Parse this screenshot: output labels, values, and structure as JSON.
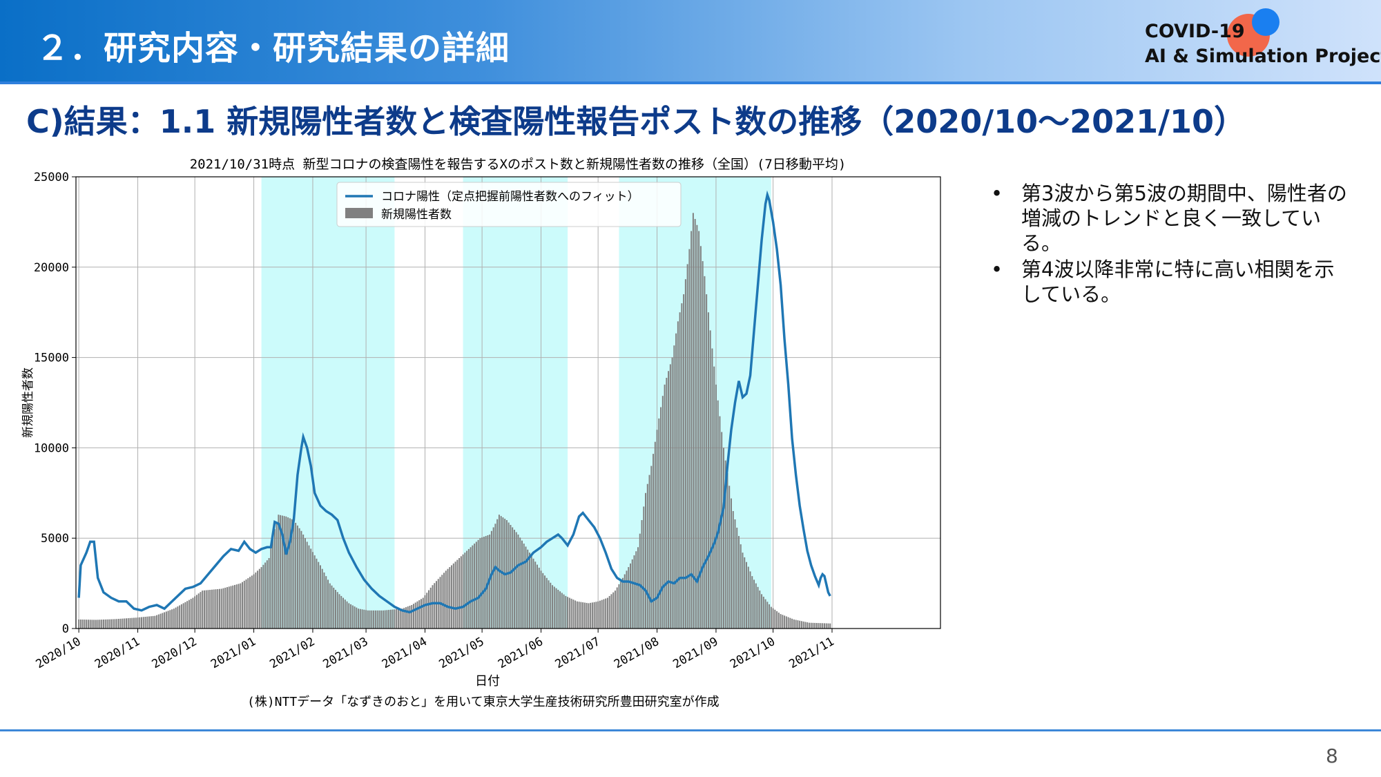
{
  "header": {
    "title": "２．研究内容・研究結果の詳細"
  },
  "logo": {
    "line1": "COVID-19",
    "line2": "AI & Simulation Project"
  },
  "slide_title": "C)結果：1.1 新規陽性者数と検査陽性報告ポスト数の推移（2020/10〜2021/10）",
  "bullets": [
    {
      "symbol": "•",
      "text": "第3波から第5波の期間中、陽性者の増減のトレンドと良く一致している。"
    },
    {
      "symbol": "•",
      "text": "第4波以降非常に特に高い相関を示している。"
    }
  ],
  "page_number": "8",
  "colors": {
    "line": "#1f77b4",
    "bar": "#808080",
    "shade": "#ccfbfb",
    "title_blue": "#0d3b8a"
  },
  "chart_data": {
    "type": "bar",
    "title": "2021/10/31時点 新型コロナの検査陽性を報告するXのポスト数と新規陽性者数の推移（全国）(7日移動平均)",
    "xlabel": "日付",
    "ylabel": "新規陽性者数",
    "caption": "(株)NTTデータ「なずきのおと」を用いて東京大学生産技術研究所豊田研究室が作成",
    "ylim": [
      0,
      25000
    ],
    "y_ticks": [
      "0",
      "5000",
      "10000",
      "15000",
      "20000",
      "25000"
    ],
    "x_start": "2020-10-01",
    "x_end": "2021-10-31",
    "x_ticks": [
      "2020/10",
      "2020/11",
      "2020/12",
      "2021/01",
      "2021/02",
      "2021/03",
      "2021/04",
      "2021/05",
      "2021/06",
      "2021/07",
      "2021/08",
      "2021/09",
      "2021/10",
      "2021/11"
    ],
    "grid": true,
    "legend_position": "top-center",
    "shaded_periods": [
      [
        "2021-01-05",
        "2021-03-16"
      ],
      [
        "2021-04-21",
        "2021-06-15"
      ],
      [
        "2021-07-12",
        "2021-09-30"
      ]
    ],
    "series": [
      {
        "name": "コロナ陽性（定点把握前陽性者数へのフィット）",
        "type": "line",
        "points": [
          [
            "2020-10-01",
            1700
          ],
          [
            "2020-10-02",
            3500
          ],
          [
            "2020-10-05",
            4200
          ],
          [
            "2020-10-07",
            4800
          ],
          [
            "2020-10-09",
            4800
          ],
          [
            "2020-10-11",
            2800
          ],
          [
            "2020-10-14",
            2000
          ],
          [
            "2020-10-18",
            1700
          ],
          [
            "2020-10-22",
            1500
          ],
          [
            "2020-10-26",
            1500
          ],
          [
            "2020-10-30",
            1100
          ],
          [
            "2020-11-03",
            1000
          ],
          [
            "2020-11-07",
            1200
          ],
          [
            "2020-11-11",
            1300
          ],
          [
            "2020-11-15",
            1100
          ],
          [
            "2020-11-19",
            1500
          ],
          [
            "2020-11-23",
            1900
          ],
          [
            "2020-11-26",
            2200
          ],
          [
            "2020-11-30",
            2300
          ],
          [
            "2020-12-04",
            2500
          ],
          [
            "2020-12-08",
            3000
          ],
          [
            "2020-12-12",
            3500
          ],
          [
            "2020-12-16",
            4000
          ],
          [
            "2020-12-20",
            4400
          ],
          [
            "2020-12-24",
            4300
          ],
          [
            "2020-12-27",
            4800
          ],
          [
            "2020-12-30",
            4400
          ],
          [
            "2021-01-02",
            4200
          ],
          [
            "2021-01-05",
            4400
          ],
          [
            "2021-01-08",
            4500
          ],
          [
            "2021-01-10",
            4500
          ],
          [
            "2021-01-12",
            5900
          ],
          [
            "2021-01-14",
            5800
          ],
          [
            "2021-01-16",
            5200
          ],
          [
            "2021-01-18",
            4100
          ],
          [
            "2021-01-20",
            4800
          ],
          [
            "2021-01-22",
            6000
          ],
          [
            "2021-01-24",
            8500
          ],
          [
            "2021-01-26",
            10000
          ],
          [
            "2021-01-27",
            10600
          ],
          [
            "2021-01-29",
            10000
          ],
          [
            "2021-01-31",
            9000
          ],
          [
            "2021-02-02",
            7500
          ],
          [
            "2021-02-05",
            6800
          ],
          [
            "2021-02-08",
            6500
          ],
          [
            "2021-02-11",
            6300
          ],
          [
            "2021-02-14",
            6000
          ],
          [
            "2021-02-17",
            5000
          ],
          [
            "2021-02-20",
            4200
          ],
          [
            "2021-02-24",
            3400
          ],
          [
            "2021-02-28",
            2700
          ],
          [
            "2021-03-04",
            2200
          ],
          [
            "2021-03-08",
            1800
          ],
          [
            "2021-03-12",
            1500
          ],
          [
            "2021-03-16",
            1200
          ],
          [
            "2021-03-20",
            1000
          ],
          [
            "2021-03-24",
            900
          ],
          [
            "2021-03-28",
            1100
          ],
          [
            "2021-04-01",
            1300
          ],
          [
            "2021-04-05",
            1400
          ],
          [
            "2021-04-09",
            1400
          ],
          [
            "2021-04-13",
            1200
          ],
          [
            "2021-04-17",
            1100
          ],
          [
            "2021-04-21",
            1200
          ],
          [
            "2021-04-25",
            1500
          ],
          [
            "2021-04-29",
            1700
          ],
          [
            "2021-05-03",
            2200
          ],
          [
            "2021-05-06",
            3000
          ],
          [
            "2021-05-08",
            3400
          ],
          [
            "2021-05-10",
            3200
          ],
          [
            "2021-05-13",
            3000
          ],
          [
            "2021-05-16",
            3100
          ],
          [
            "2021-05-20",
            3500
          ],
          [
            "2021-05-24",
            3700
          ],
          [
            "2021-05-28",
            4200
          ],
          [
            "2021-06-01",
            4500
          ],
          [
            "2021-06-04",
            4800
          ],
          [
            "2021-06-07",
            5000
          ],
          [
            "2021-06-10",
            5200
          ],
          [
            "2021-06-12",
            5000
          ],
          [
            "2021-06-15",
            4600
          ],
          [
            "2021-06-18",
            5200
          ],
          [
            "2021-06-21",
            6200
          ],
          [
            "2021-06-23",
            6400
          ],
          [
            "2021-06-26",
            6000
          ],
          [
            "2021-06-29",
            5600
          ],
          [
            "2021-07-02",
            5000
          ],
          [
            "2021-07-05",
            4200
          ],
          [
            "2021-07-08",
            3300
          ],
          [
            "2021-07-11",
            2800
          ],
          [
            "2021-07-14",
            2600
          ],
          [
            "2021-07-17",
            2600
          ],
          [
            "2021-07-20",
            2500
          ],
          [
            "2021-07-23",
            2400
          ],
          [
            "2021-07-26",
            2100
          ],
          [
            "2021-07-29",
            1500
          ],
          [
            "2021-08-01",
            1700
          ],
          [
            "2021-08-04",
            2300
          ],
          [
            "2021-08-07",
            2600
          ],
          [
            "2021-08-10",
            2500
          ],
          [
            "2021-08-13",
            2800
          ],
          [
            "2021-08-16",
            2800
          ],
          [
            "2021-08-19",
            3000
          ],
          [
            "2021-08-22",
            2600
          ],
          [
            "2021-08-25",
            3400
          ],
          [
            "2021-08-28",
            4000
          ],
          [
            "2021-08-31",
            4700
          ],
          [
            "2021-09-02",
            5300
          ],
          [
            "2021-09-05",
            6700
          ],
          [
            "2021-09-07",
            9000
          ],
          [
            "2021-09-09",
            11000
          ],
          [
            "2021-09-11",
            12500
          ],
          [
            "2021-09-13",
            13700
          ],
          [
            "2021-09-15",
            12800
          ],
          [
            "2021-09-17",
            13000
          ],
          [
            "2021-09-19",
            14000
          ],
          [
            "2021-09-21",
            16500
          ],
          [
            "2021-09-23",
            19000
          ],
          [
            "2021-09-25",
            21500
          ],
          [
            "2021-09-27",
            23500
          ],
          [
            "2021-09-28",
            24000
          ],
          [
            "2021-09-29",
            23700
          ],
          [
            "2021-10-01",
            22500
          ],
          [
            "2021-10-03",
            21000
          ],
          [
            "2021-10-05",
            19000
          ],
          [
            "2021-10-07",
            16000
          ],
          [
            "2021-10-09",
            13500
          ],
          [
            "2021-10-11",
            10500
          ],
          [
            "2021-10-13",
            8500
          ],
          [
            "2021-10-15",
            6800
          ],
          [
            "2021-10-17",
            5500
          ],
          [
            "2021-10-19",
            4300
          ],
          [
            "2021-10-21",
            3500
          ],
          [
            "2021-10-23",
            2900
          ],
          [
            "2021-10-25",
            2400
          ],
          [
            "2021-10-26",
            2800
          ],
          [
            "2021-10-27",
            3000
          ],
          [
            "2021-10-28",
            2900
          ],
          [
            "2021-10-30",
            2000
          ],
          [
            "2021-10-31",
            1800
          ]
        ]
      },
      {
        "name": "新規陽性者数",
        "type": "bar",
        "points": [
          [
            "2020-10-01",
            500
          ],
          [
            "2020-10-10",
            480
          ],
          [
            "2020-10-20",
            520
          ],
          [
            "2020-10-31",
            600
          ],
          [
            "2020-11-10",
            700
          ],
          [
            "2020-11-20",
            1100
          ],
          [
            "2020-11-30",
            1700
          ],
          [
            "2020-12-05",
            2100
          ],
          [
            "2020-12-15",
            2200
          ],
          [
            "2020-12-25",
            2500
          ],
          [
            "2021-01-01",
            3000
          ],
          [
            "2021-01-05",
            3400
          ],
          [
            "2021-01-09",
            3900
          ],
          [
            "2021-01-12",
            5500
          ],
          [
            "2021-01-14",
            6300
          ],
          [
            "2021-01-18",
            6200
          ],
          [
            "2021-01-22",
            6000
          ],
          [
            "2021-01-26",
            5400
          ],
          [
            "2021-01-30",
            4600
          ],
          [
            "2021-02-05",
            3500
          ],
          [
            "2021-02-10",
            2500
          ],
          [
            "2021-02-15",
            1900
          ],
          [
            "2021-02-20",
            1400
          ],
          [
            "2021-02-25",
            1100
          ],
          [
            "2021-03-02",
            1000
          ],
          [
            "2021-03-10",
            1000
          ],
          [
            "2021-03-20",
            1100
          ],
          [
            "2021-03-25",
            1300
          ],
          [
            "2021-03-31",
            1700
          ],
          [
            "2021-04-05",
            2400
          ],
          [
            "2021-04-12",
            3200
          ],
          [
            "2021-04-20",
            4000
          ],
          [
            "2021-04-26",
            4600
          ],
          [
            "2021-04-30",
            5000
          ],
          [
            "2021-05-05",
            5200
          ],
          [
            "2021-05-08",
            5800
          ],
          [
            "2021-05-10",
            6300
          ],
          [
            "2021-05-14",
            6000
          ],
          [
            "2021-05-20",
            5200
          ],
          [
            "2021-05-26",
            4200
          ],
          [
            "2021-06-01",
            3200
          ],
          [
            "2021-06-07",
            2400
          ],
          [
            "2021-06-14",
            1800
          ],
          [
            "2021-06-20",
            1500
          ],
          [
            "2021-06-26",
            1400
          ],
          [
            "2021-07-01",
            1500
          ],
          [
            "2021-07-06",
            1700
          ],
          [
            "2021-07-10",
            2100
          ],
          [
            "2021-07-14",
            2800
          ],
          [
            "2021-07-18",
            3600
          ],
          [
            "2021-07-22",
            4500
          ],
          [
            "2021-07-26",
            7500
          ],
          [
            "2021-07-29",
            9000
          ],
          [
            "2021-08-01",
            11000
          ],
          [
            "2021-08-05",
            13500
          ],
          [
            "2021-08-09",
            15000
          ],
          [
            "2021-08-12",
            17000
          ],
          [
            "2021-08-15",
            18500
          ],
          [
            "2021-08-18",
            21000
          ],
          [
            "2021-08-20",
            23000
          ],
          [
            "2021-08-23",
            22000
          ],
          [
            "2021-08-26",
            19500
          ],
          [
            "2021-08-29",
            16500
          ],
          [
            "2021-09-01",
            13500
          ],
          [
            "2021-09-05",
            10000
          ],
          [
            "2021-09-10",
            6500
          ],
          [
            "2021-09-15",
            4200
          ],
          [
            "2021-09-20",
            2900
          ],
          [
            "2021-09-25",
            1900
          ],
          [
            "2021-09-30",
            1200
          ],
          [
            "2021-10-05",
            800
          ],
          [
            "2021-10-12",
            500
          ],
          [
            "2021-10-20",
            320
          ],
          [
            "2021-10-31",
            280
          ]
        ]
      }
    ]
  }
}
